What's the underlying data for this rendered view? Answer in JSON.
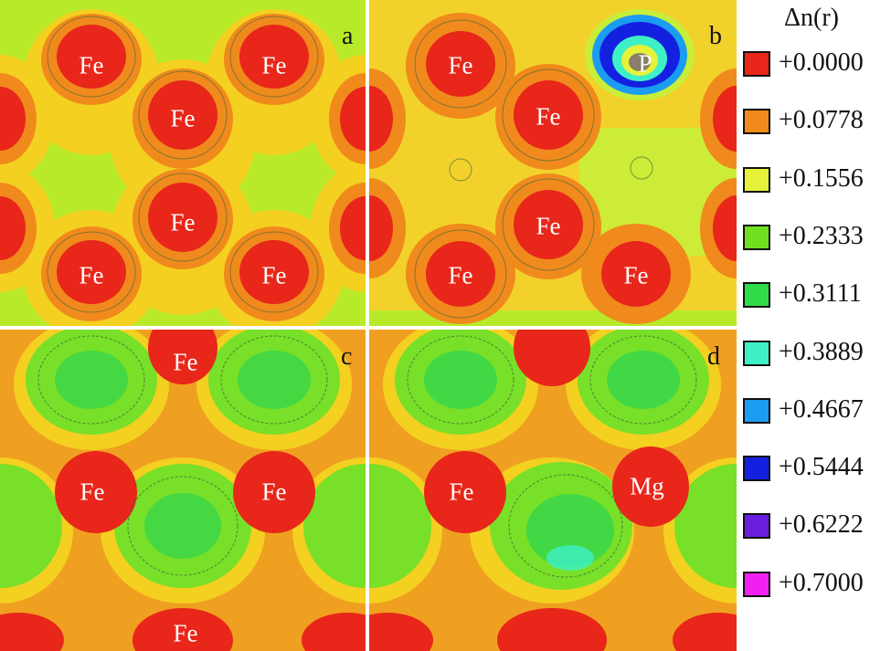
{
  "legend": {
    "title": "Δn(r)",
    "entries": [
      {
        "label": "+0.0000",
        "color": "#e8261a"
      },
      {
        "label": "+0.0778",
        "color": "#f08a1c"
      },
      {
        "label": "+0.1556",
        "color": "#e6f23a"
      },
      {
        "label": "+0.2333",
        "color": "#6ee020"
      },
      {
        "label": "+0.3111",
        "color": "#30dc4a"
      },
      {
        "label": "+0.3889",
        "color": "#3ef0c6"
      },
      {
        "label": "+0.4667",
        "color": "#1a9cf0"
      },
      {
        "label": "+0.5444",
        "color": "#1420e0"
      },
      {
        "label": "+0.6222",
        "color": "#6a1ee0"
      },
      {
        "label": "+0.7000",
        "color": "#f020f0"
      }
    ]
  },
  "panels": {
    "a": {
      "label": "a",
      "atoms": [
        "Fe",
        "Fe",
        "Fe",
        "Fe",
        "Fe",
        "Fe"
      ]
    },
    "b": {
      "label": "b",
      "atoms": [
        "Fe",
        "Fe",
        "Fe",
        "Fe",
        "Fe",
        "P"
      ]
    },
    "c": {
      "label": "c",
      "atoms": [
        "Fe",
        "Fe",
        "Fe",
        "Fe"
      ]
    },
    "d": {
      "label": "d",
      "atoms": [
        "Fe",
        "Mg"
      ]
    }
  }
}
